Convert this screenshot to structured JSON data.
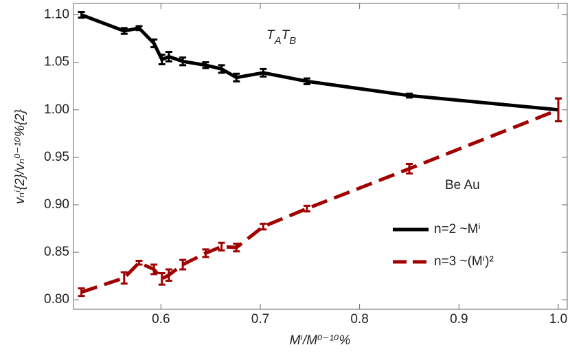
{
  "chart_data": {
    "type": "line",
    "x_label": "Mⁱ/M⁰⁻¹⁰%",
    "y_label": "vₙⁱ{2}/vₙ⁰⁻¹⁰%{2}",
    "annotations": [
      [
        "T",
        "A",
        "T",
        "B"
      ],
      "Be Au"
    ],
    "x": [
      0.52,
      0.563,
      0.578,
      0.593,
      0.601,
      0.608,
      0.622,
      0.645,
      0.661,
      0.676,
      0.703,
      0.747,
      0.85,
      1.0
    ],
    "series": [
      {
        "name": "n=2 ~Mⁱ",
        "color": "#000000",
        "dash": false,
        "values": [
          1.1,
          1.083,
          1.086,
          1.07,
          1.053,
          1.056,
          1.051,
          1.047,
          1.043,
          1.034,
          1.039,
          1.03,
          1.015,
          1.0
        ],
        "errors": [
          0.003,
          0.003,
          0.002,
          0.004,
          0.005,
          0.005,
          0.004,
          0.003,
          0.004,
          0.004,
          0.004,
          0.003,
          0.002,
          0.012
        ]
      },
      {
        "name": "n=3 ~(Mⁱ)²",
        "color": "#a00000",
        "dash": true,
        "values": [
          0.808,
          0.823,
          0.839,
          0.832,
          0.822,
          0.826,
          0.837,
          0.849,
          0.856,
          0.855,
          0.877,
          0.896,
          0.938,
          1.0
        ],
        "errors": [
          0.004,
          0.006,
          0.002,
          0.005,
          0.006,
          0.006,
          0.005,
          0.004,
          0.004,
          0.004,
          0.003,
          0.003,
          0.005,
          0.012
        ]
      }
    ],
    "xlim": [
      0.512,
      1.009
    ],
    "ylim": [
      0.79,
      1.112
    ],
    "xticks": [
      0.6,
      0.7,
      0.8,
      0.9,
      {
        "value": 1,
        "label": "1.0"
      }
    ],
    "yticks": [
      {
        "value": 0.8,
        "label": "0.80"
      },
      0.85,
      {
        "value": 0.9,
        "label": "0.90"
      },
      0.95,
      {
        "value": 1,
        "label": "1.00"
      },
      1.05,
      {
        "value": 1.1,
        "label": "1.10"
      }
    ],
    "legend": "lower right",
    "grid": false
  }
}
